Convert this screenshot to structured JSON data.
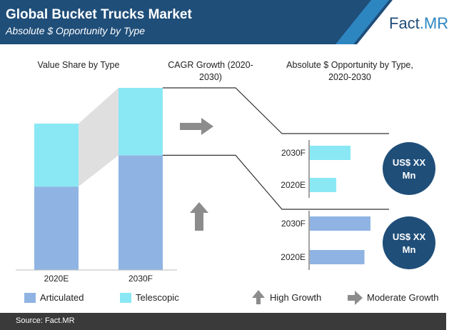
{
  "header": {
    "title": "Global Bucket Trucks Market",
    "subtitle": "Absolute $ Opportunity by Type",
    "brand_a": "Fact",
    "brand_b": ".MR"
  },
  "sections": {
    "value_share": "Value Share by Type",
    "cagr": "CAGR Growth (2020-2030)",
    "opportunity": "Absolute $ Opportunity by Type, 2020-2030"
  },
  "colors": {
    "articulated": "#8fb4e3",
    "telescopic": "#8ae8f5",
    "header": "#1f4e79",
    "circle": "#1f4e79",
    "arrow": "#8c8c8c"
  },
  "chart_data": [
    {
      "type": "bar",
      "stacked": true,
      "categories": [
        "2020E",
        "2030F"
      ],
      "series": [
        {
          "name": "Articulated",
          "values": [
            57,
            63
          ]
        },
        {
          "name": "Telescopic",
          "values": [
            43,
            37
          ]
        }
      ],
      "ylim": [
        0,
        100
      ]
    },
    {
      "type": "bar",
      "orientation": "horizontal",
      "segment": "Telescopic",
      "categories": [
        "2030F",
        "2020E"
      ],
      "values": [
        100,
        65
      ],
      "callout": "US$ XX Mn"
    },
    {
      "type": "bar",
      "orientation": "horizontal",
      "segment": "Articulated",
      "categories": [
        "2030F",
        "2020E"
      ],
      "values": [
        100,
        90
      ],
      "callout": "US$ XX Mn"
    }
  ],
  "legend": {
    "articulated": "Articulated",
    "telescopic": "Telescopic",
    "high_growth": "High Growth",
    "moderate_growth": "Moderate Growth"
  },
  "growth": {
    "telescopic": "moderate",
    "articulated": "high"
  },
  "footer": {
    "source": "Source: Fact.MR"
  }
}
